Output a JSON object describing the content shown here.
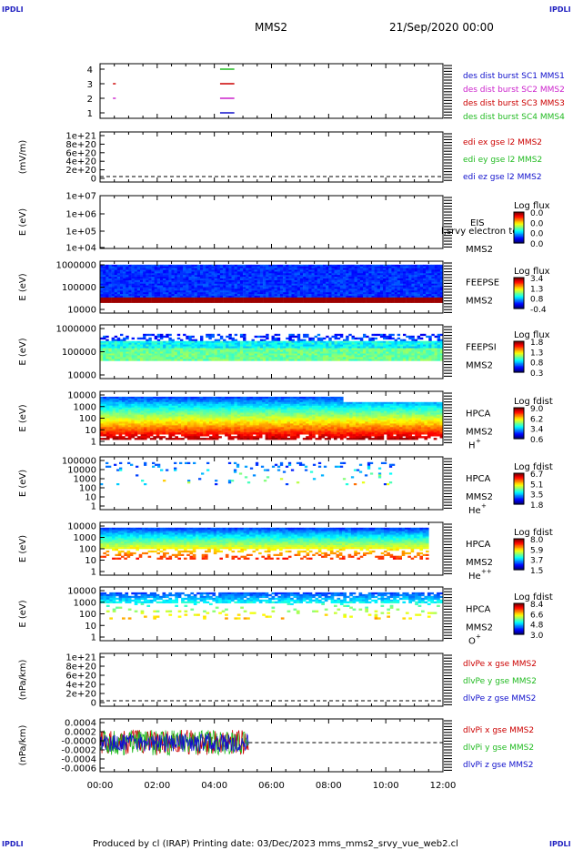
{
  "corners": {
    "top_left": "IPDLI",
    "top_right": "IPDLI",
    "bottom_left": "IPDLI",
    "bottom_right": "IPDLI"
  },
  "header": {
    "title": "MMS2",
    "date": "21/Sep/2020 00:00"
  },
  "footer": {
    "text": "Produced by cl (IRAP)   Printing date: 03/Dec/2023   mms_mms2_srvy_vue_web2.cl"
  },
  "colors": {
    "red": "#cc0000",
    "green": "#22bb22",
    "blue": "#1010cc",
    "magenta": "#cc22cc"
  },
  "chart_data": [
    {
      "type": "timeline",
      "title": "",
      "x": [
        "00:00",
        "02:00",
        "04:00",
        "06:00",
        "08:00",
        "10:00",
        "12:00"
      ],
      "yticks": [
        "4",
        "3",
        "2",
        "1"
      ],
      "legend": [
        {
          "name": "des dist burst SC1 MMS1",
          "color": "#1010cc"
        },
        {
          "name": "des dist burst SC2 MMS2",
          "color": "#cc22cc"
        },
        {
          "name": "des dist burst SC3 MMS3",
          "color": "#cc0000"
        },
        {
          "name": "des dist burst SC4 MMS4",
          "color": "#22bb22"
        }
      ],
      "intervals": [
        {
          "level": 4,
          "start": 4.2,
          "end": 4.7,
          "color": "#22bb22"
        },
        {
          "level": 3,
          "start": 0.45,
          "end": 0.55,
          "color": "#cc0000"
        },
        {
          "level": 3,
          "start": 4.2,
          "end": 4.7,
          "color": "#cc0000"
        },
        {
          "level": 2,
          "start": 0.45,
          "end": 0.55,
          "color": "#cc22cc"
        },
        {
          "level": 2,
          "start": 4.2,
          "end": 4.7,
          "color": "#cc22cc"
        },
        {
          "level": 1,
          "start": 4.2,
          "end": 4.7,
          "color": "#1010cc"
        }
      ]
    },
    {
      "type": "line",
      "ylabel": "(mV/m)",
      "yticks": [
        "1e+21",
        "8e+20",
        "6e+20",
        "4e+20",
        "2e+20",
        "0"
      ],
      "series": [
        {
          "name": "edi ex gse l2 MMS2",
          "color": "#cc0000"
        },
        {
          "name": "edi ey gse l2 MMS2",
          "color": "#22bb22"
        },
        {
          "name": "edi ez gse l2 MMS2",
          "color": "#1010cc"
        }
      ]
    },
    {
      "type": "heatmap",
      "ylabel": "E (eV)",
      "yticks": [
        "1e+07",
        "1e+06",
        "1e+05",
        "1e+04"
      ],
      "instrument": "EIS",
      "spacecraft": "MMS2",
      "overlay_text": "l,srvy electron to",
      "colorbar": {
        "title": "Log flux",
        "ticks": [
          "0.0",
          "0.0",
          "0.0",
          "0.0"
        ]
      },
      "fill": "none"
    },
    {
      "type": "heatmap",
      "ylabel": "E (eV)",
      "yticks": [
        "1000000",
        "100000",
        "10000"
      ],
      "instrument": "FEEPSE",
      "spacecraft": "MMS2",
      "colorbar": {
        "title": "Log flux",
        "ticks": [
          "3.4",
          "1.3",
          "0.8",
          "-0.4"
        ]
      },
      "data_start": 0.0,
      "data_end": 12.0
    },
    {
      "type": "heatmap",
      "ylabel": "E (eV)",
      "yticks": [
        "1000000",
        "100000",
        "10000"
      ],
      "instrument": "FEEPSI",
      "spacecraft": "MMS2",
      "colorbar": {
        "title": "Log flux",
        "ticks": [
          "1.8",
          "1.3",
          "0.8",
          "0.3"
        ]
      },
      "data_start": 0.0,
      "data_end": 12.0
    },
    {
      "type": "heatmap",
      "ylabel": "E (eV)",
      "yticks": [
        "10000",
        "1000",
        "100",
        "10",
        "1"
      ],
      "instrument": "HPCA",
      "spacecraft": "MMS2",
      "species": "H",
      "charge": "+",
      "colorbar": {
        "title": "Log fdist",
        "ticks": [
          "9.0",
          "6.2",
          "3.4",
          "0.6"
        ]
      },
      "data_start": 0.0,
      "data_end": 12.0
    },
    {
      "type": "heatmap",
      "ylabel": "E (eV)",
      "yticks": [
        "100000",
        "10000",
        "1000",
        "100",
        "10",
        "1"
      ],
      "instrument": "HPCA",
      "spacecraft": "MMS2",
      "species": "He",
      "charge": "+",
      "colorbar": {
        "title": "Log fdist",
        "ticks": [
          "6.7",
          "5.1",
          "3.5",
          "1.8"
        ]
      },
      "data_start": 0.0,
      "data_end": 10.5
    },
    {
      "type": "heatmap",
      "ylabel": "E (eV)",
      "yticks": [
        "10000",
        "1000",
        "100",
        "10",
        "1"
      ],
      "instrument": "HPCA",
      "spacecraft": "MMS2",
      "species": "He",
      "charge": "++",
      "colorbar": {
        "title": "Log fdist",
        "ticks": [
          "8.0",
          "5.9",
          "3.7",
          "1.5"
        ]
      },
      "data_start": 0.0,
      "data_end": 11.5
    },
    {
      "type": "heatmap",
      "ylabel": "E (eV)",
      "yticks": [
        "10000",
        "1000",
        "100",
        "10",
        "1"
      ],
      "instrument": "HPCA",
      "spacecraft": "MMS2",
      "species": "O",
      "charge": "+",
      "colorbar": {
        "title": "Log fdist",
        "ticks": [
          "8.4",
          "6.6",
          "4.8",
          "3.0"
        ]
      },
      "data_start": 0.0,
      "data_end": 12.0
    },
    {
      "type": "line",
      "ylabel": "(nPa/km)",
      "yticks": [
        "1e+21",
        "8e+20",
        "6e+20",
        "4e+20",
        "2e+20",
        "0"
      ],
      "series": [
        {
          "name": "dlvPe x gse MMS2",
          "color": "#cc0000"
        },
        {
          "name": "dlvPe y gse MMS2",
          "color": "#22bb22"
        },
        {
          "name": "dlvPe z gse MMS2",
          "color": "#1010cc"
        }
      ]
    },
    {
      "type": "line",
      "ylabel": "(nPa/km)",
      "yticks": [
        "0.0004",
        "0.0002",
        "-0.0000",
        "-0.0002",
        "-0.0004",
        "-0.0006"
      ],
      "series": [
        {
          "name": "dlvPi x gse MMS2",
          "color": "#cc0000"
        },
        {
          "name": "dlvPi y gse MMS2",
          "color": "#22bb22"
        },
        {
          "name": "dlvPi z gse MMS2",
          "color": "#1010cc"
        }
      ],
      "data_start": 0.0,
      "data_end": 5.2
    }
  ]
}
